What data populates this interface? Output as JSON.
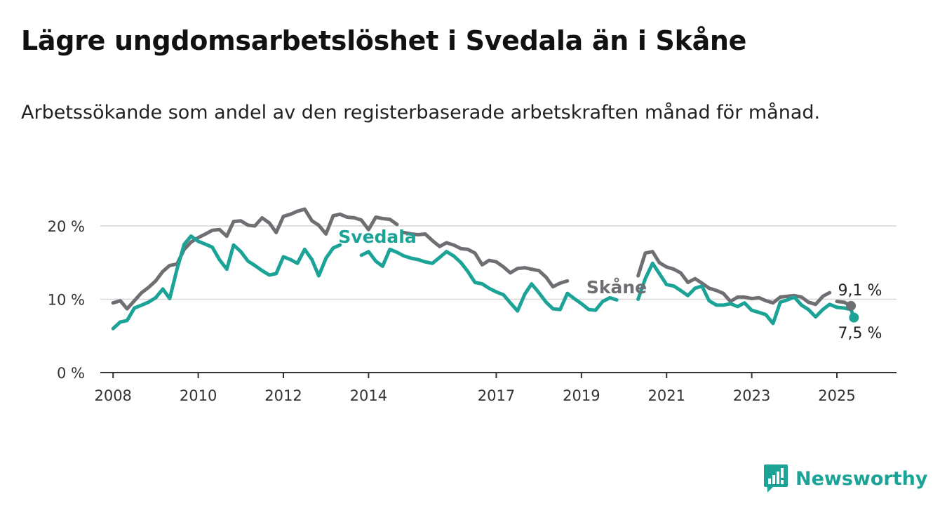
{
  "title": "Lägre ungdomsarbetslöshet i Svedala än i Skåne",
  "subtitle": "Arbetssökande som andel av den registerbaserade arbetskraften månad för månad.",
  "brand": {
    "name": "Newsworthy",
    "icon": "bar-chart-icon",
    "color": "#1aa396"
  },
  "chart_data": {
    "type": "line",
    "title": "Lägre ungdomsarbetslöshet i Svedala än i Skåne",
    "subtitle": "Arbetssökande som andel av den registerbaserade arbetskraften månad för månad.",
    "xlabel": "",
    "ylabel": "",
    "xlim": [
      2007.7,
      2026.4
    ],
    "ylim": [
      0,
      20
    ],
    "x_ticks": [
      2008,
      2010,
      2012,
      2014,
      2017,
      2019,
      2021,
      2023,
      2025
    ],
    "y_ticks": [
      {
        "value": 0,
        "label": "0 %"
      },
      {
        "value": 10,
        "label": "10 %"
      },
      {
        "value": 20,
        "label": "20 %"
      }
    ],
    "grid": true,
    "legend": "inline labels",
    "series": [
      {
        "name": "Skåne",
        "color": "#6e6e73",
        "label": "Skåne",
        "end_label": "9,1 %",
        "points": [
          [
            2008.0,
            9.5
          ],
          [
            2008.17,
            9.8
          ],
          [
            2008.33,
            8.7
          ],
          [
            2008.5,
            9.8
          ],
          [
            2008.67,
            10.9
          ],
          [
            2008.83,
            11.6
          ],
          [
            2009.0,
            12.5
          ],
          [
            2009.17,
            13.8
          ],
          [
            2009.33,
            14.6
          ],
          [
            2009.5,
            14.8
          ],
          [
            2009.67,
            16.8
          ],
          [
            2009.83,
            17.8
          ],
          [
            2010.0,
            18.4
          ],
          [
            2010.17,
            18.9
          ],
          [
            2010.33,
            19.4
          ],
          [
            2010.5,
            19.5
          ],
          [
            2010.67,
            18.6
          ],
          [
            2010.83,
            20.6
          ],
          [
            2011.0,
            20.7
          ],
          [
            2011.17,
            20.1
          ],
          [
            2011.33,
            20.0
          ],
          [
            2011.5,
            21.1
          ],
          [
            2011.67,
            20.4
          ],
          [
            2011.83,
            19.1
          ],
          [
            2012.0,
            21.3
          ],
          [
            2012.17,
            21.6
          ],
          [
            2012.33,
            22.0
          ],
          [
            2012.5,
            22.3
          ],
          [
            2012.67,
            20.7
          ],
          [
            2012.83,
            20.1
          ],
          [
            2013.0,
            18.9
          ],
          [
            2013.17,
            21.4
          ],
          [
            2013.33,
            21.6
          ],
          [
            2013.5,
            21.2
          ],
          [
            2013.67,
            21.1
          ],
          [
            2013.83,
            20.8
          ],
          [
            2014.0,
            19.5
          ],
          [
            2014.17,
            21.2
          ],
          [
            2014.33,
            21.0
          ],
          [
            2014.5,
            20.9
          ],
          [
            2014.67,
            20.2
          ]
        ]
      },
      {
        "name": "Skåne",
        "color": "#6e6e73",
        "points": [
          [
            2014.83,
            19.1
          ],
          [
            2015.0,
            18.9
          ],
          [
            2015.17,
            18.8
          ],
          [
            2015.33,
            18.9
          ],
          [
            2015.5,
            18.0
          ],
          [
            2015.67,
            17.2
          ],
          [
            2015.83,
            17.7
          ],
          [
            2016.0,
            17.4
          ],
          [
            2016.17,
            16.9
          ],
          [
            2016.33,
            16.8
          ],
          [
            2016.5,
            16.3
          ],
          [
            2016.67,
            14.7
          ],
          [
            2016.83,
            15.3
          ],
          [
            2017.0,
            15.1
          ],
          [
            2017.17,
            14.4
          ],
          [
            2017.33,
            13.6
          ],
          [
            2017.5,
            14.2
          ],
          [
            2017.67,
            14.3
          ],
          [
            2017.83,
            14.1
          ],
          [
            2018.0,
            13.9
          ],
          [
            2018.17,
            13.0
          ],
          [
            2018.33,
            11.7
          ],
          [
            2018.5,
            12.2
          ],
          [
            2018.67,
            12.5
          ]
        ]
      },
      {
        "name": "Skåne",
        "color": "#6e6e73",
        "points": [
          [
            2020.33,
            13.2
          ],
          [
            2020.5,
            16.3
          ],
          [
            2020.67,
            16.5
          ],
          [
            2020.83,
            15.0
          ],
          [
            2021.0,
            14.4
          ],
          [
            2021.17,
            14.1
          ],
          [
            2021.33,
            13.6
          ],
          [
            2021.5,
            12.3
          ],
          [
            2021.67,
            12.8
          ],
          [
            2021.83,
            12.2
          ],
          [
            2022.0,
            11.5
          ],
          [
            2022.17,
            11.2
          ],
          [
            2022.33,
            10.8
          ],
          [
            2022.5,
            9.7
          ],
          [
            2022.67,
            10.3
          ],
          [
            2022.83,
            10.3
          ],
          [
            2023.0,
            10.1
          ],
          [
            2023.17,
            10.2
          ],
          [
            2023.33,
            9.8
          ],
          [
            2023.5,
            9.5
          ],
          [
            2023.67,
            10.3
          ],
          [
            2023.83,
            10.4
          ],
          [
            2024.0,
            10.5
          ],
          [
            2024.17,
            10.3
          ],
          [
            2024.33,
            9.6
          ],
          [
            2024.5,
            9.3
          ],
          [
            2024.67,
            10.4
          ],
          [
            2024.83,
            10.9
          ]
        ]
      },
      {
        "name": "Skåne",
        "color": "#6e6e73",
        "points": [
          [
            2025.0,
            9.7
          ],
          [
            2025.17,
            9.6
          ],
          [
            2025.33,
            9.1
          ]
        ]
      },
      {
        "name": "Svedala",
        "color": "#1aa396",
        "label": "Svedala",
        "end_label": "7,5 %",
        "points": [
          [
            2008.0,
            6.0
          ],
          [
            2008.17,
            6.9
          ],
          [
            2008.33,
            7.1
          ],
          [
            2008.5,
            8.8
          ],
          [
            2008.67,
            9.2
          ],
          [
            2008.83,
            9.6
          ],
          [
            2009.0,
            10.2
          ],
          [
            2009.17,
            11.4
          ],
          [
            2009.33,
            10.1
          ],
          [
            2009.5,
            14.1
          ],
          [
            2009.67,
            17.5
          ],
          [
            2009.83,
            18.6
          ],
          [
            2010.0,
            17.9
          ],
          [
            2010.17,
            17.5
          ],
          [
            2010.33,
            17.1
          ],
          [
            2010.5,
            15.4
          ],
          [
            2010.67,
            14.1
          ],
          [
            2010.83,
            17.4
          ],
          [
            2011.0,
            16.5
          ],
          [
            2011.17,
            15.2
          ],
          [
            2011.33,
            14.6
          ],
          [
            2011.5,
            13.9
          ],
          [
            2011.67,
            13.3
          ],
          [
            2011.83,
            13.5
          ],
          [
            2012.0,
            15.8
          ],
          [
            2012.17,
            15.4
          ],
          [
            2012.33,
            14.9
          ],
          [
            2012.5,
            16.8
          ],
          [
            2012.67,
            15.4
          ],
          [
            2012.83,
            13.2
          ],
          [
            2013.0,
            15.6
          ],
          [
            2013.17,
            17.0
          ],
          [
            2013.33,
            17.4
          ]
        ]
      },
      {
        "name": "Svedala",
        "color": "#1aa396",
        "points": [
          [
            2013.83,
            16.0
          ],
          [
            2014.0,
            16.5
          ],
          [
            2014.17,
            15.2
          ],
          [
            2014.33,
            14.5
          ],
          [
            2014.5,
            16.8
          ],
          [
            2014.67,
            16.4
          ],
          [
            2014.83,
            15.9
          ],
          [
            2015.0,
            15.6
          ],
          [
            2015.17,
            15.4
          ],
          [
            2015.33,
            15.1
          ],
          [
            2015.5,
            14.9
          ],
          [
            2015.67,
            15.7
          ],
          [
            2015.83,
            16.5
          ],
          [
            2016.0,
            15.9
          ],
          [
            2016.17,
            15.0
          ],
          [
            2016.33,
            13.8
          ],
          [
            2016.5,
            12.3
          ],
          [
            2016.67,
            12.1
          ],
          [
            2016.83,
            11.5
          ],
          [
            2017.0,
            11.0
          ],
          [
            2017.17,
            10.6
          ],
          [
            2017.33,
            9.5
          ],
          [
            2017.5,
            8.4
          ],
          [
            2017.67,
            10.7
          ],
          [
            2017.83,
            12.1
          ],
          [
            2018.0,
            10.9
          ],
          [
            2018.17,
            9.6
          ],
          [
            2018.33,
            8.7
          ],
          [
            2018.5,
            8.6
          ],
          [
            2018.67,
            10.8
          ],
          [
            2018.83,
            10.1
          ],
          [
            2019.0,
            9.4
          ],
          [
            2019.17,
            8.6
          ],
          [
            2019.33,
            8.5
          ],
          [
            2019.5,
            9.7
          ],
          [
            2019.67,
            10.2
          ],
          [
            2019.83,
            9.9
          ]
        ]
      },
      {
        "name": "Svedala",
        "color": "#1aa396",
        "points": [
          [
            2020.33,
            10.0
          ],
          [
            2020.5,
            12.8
          ],
          [
            2020.67,
            14.9
          ],
          [
            2020.83,
            13.5
          ],
          [
            2021.0,
            12.0
          ],
          [
            2021.17,
            11.8
          ],
          [
            2021.33,
            11.2
          ],
          [
            2021.5,
            10.5
          ],
          [
            2021.67,
            11.5
          ],
          [
            2021.83,
            11.8
          ],
          [
            2022.0,
            9.8
          ],
          [
            2022.17,
            9.2
          ],
          [
            2022.33,
            9.2
          ],
          [
            2022.5,
            9.4
          ],
          [
            2022.67,
            9.0
          ],
          [
            2022.83,
            9.5
          ],
          [
            2023.0,
            8.5
          ],
          [
            2023.17,
            8.2
          ],
          [
            2023.33,
            7.9
          ],
          [
            2023.5,
            6.7
          ],
          [
            2023.67,
            9.6
          ],
          [
            2023.83,
            9.9
          ],
          [
            2024.0,
            10.3
          ],
          [
            2024.17,
            9.2
          ],
          [
            2024.33,
            8.6
          ],
          [
            2024.5,
            7.6
          ],
          [
            2024.67,
            8.6
          ],
          [
            2024.83,
            9.3
          ],
          [
            2025.0,
            8.9
          ],
          [
            2025.17,
            8.8
          ],
          [
            2025.33,
            8.6
          ],
          [
            2025.4,
            7.5
          ]
        ]
      }
    ]
  }
}
